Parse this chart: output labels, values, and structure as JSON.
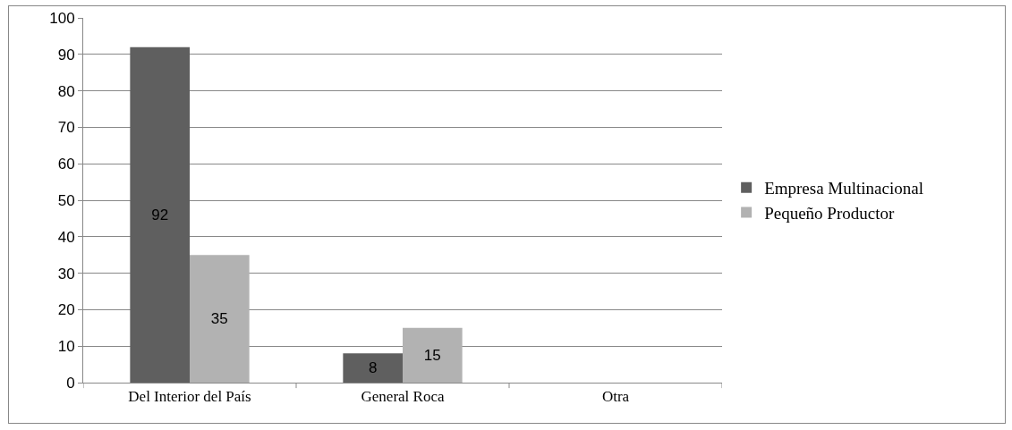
{
  "chart_data": {
    "type": "bar",
    "categories": [
      "Del Interior del País",
      "General Roca",
      "Otra"
    ],
    "series": [
      {
        "name": "Empresa Multinacional",
        "color": "#5f5f5f",
        "values": [
          92,
          8,
          null
        ]
      },
      {
        "name": "Pequeño Productor",
        "color": "#b2b2b2",
        "values": [
          35,
          15,
          null
        ]
      }
    ],
    "ylim": [
      0,
      100
    ],
    "yticks": [
      0,
      10,
      20,
      30,
      40,
      50,
      60,
      70,
      80,
      90,
      100
    ],
    "grid": "y",
    "legend": "right",
    "data_labels": true
  }
}
